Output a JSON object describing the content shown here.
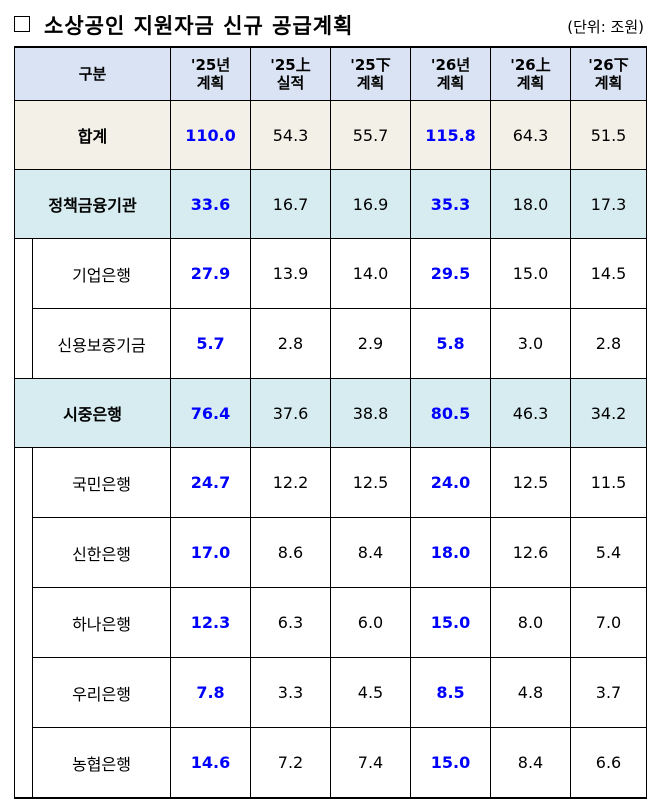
{
  "title": "소상공인 지원자금 신규 공급계획",
  "unit": "(단위: 조원)",
  "table": {
    "headers": [
      "구분",
      "'25년\n계획",
      "'25上\n실적",
      "'25下\n계획",
      "'26년\n계획",
      "'26上\n계획",
      "'26下\n계획"
    ],
    "rows": [
      {
        "label": "합계",
        "values": [
          "110.0",
          "54.3",
          "55.7",
          "115.8",
          "64.3",
          "51.5"
        ]
      },
      {
        "label": "정책금융기관",
        "values": [
          "33.6",
          "16.7",
          "16.9",
          "35.3",
          "18.0",
          "17.3"
        ]
      },
      {
        "label": "기업은행",
        "values": [
          "27.9",
          "13.9",
          "14.0",
          "29.5",
          "15.0",
          "14.5"
        ]
      },
      {
        "label": "신용보증기금",
        "values": [
          "5.7",
          "2.8",
          "2.9",
          "5.8",
          "3.0",
          "2.8"
        ]
      },
      {
        "label": "시중은행",
        "values": [
          "76.4",
          "37.6",
          "38.8",
          "80.5",
          "46.3",
          "34.2"
        ]
      },
      {
        "label": "국민은행",
        "values": [
          "24.7",
          "12.2",
          "12.5",
          "24.0",
          "12.5",
          "11.5"
        ]
      },
      {
        "label": "신한은행",
        "values": [
          "17.0",
          "8.6",
          "8.4",
          "18.0",
          "12.6",
          "5.4"
        ]
      },
      {
        "label": "하나은행",
        "values": [
          "12.3",
          "6.3",
          "6.0",
          "15.0",
          "8.0",
          "7.0"
        ]
      },
      {
        "label": "우리은행",
        "values": [
          "7.8",
          "3.3",
          "4.5",
          "8.5",
          "4.8",
          "3.7"
        ]
      },
      {
        "label": "농협은행",
        "values": [
          "14.6",
          "7.2",
          "7.4",
          "15.0",
          "8.4",
          "6.6"
        ]
      }
    ]
  },
  "colors": {
    "header_bg": "#dae3f3",
    "total_bg": "#f3f0e7",
    "group_bg": "#d6ecf0",
    "plan_value": "#0000ff"
  }
}
